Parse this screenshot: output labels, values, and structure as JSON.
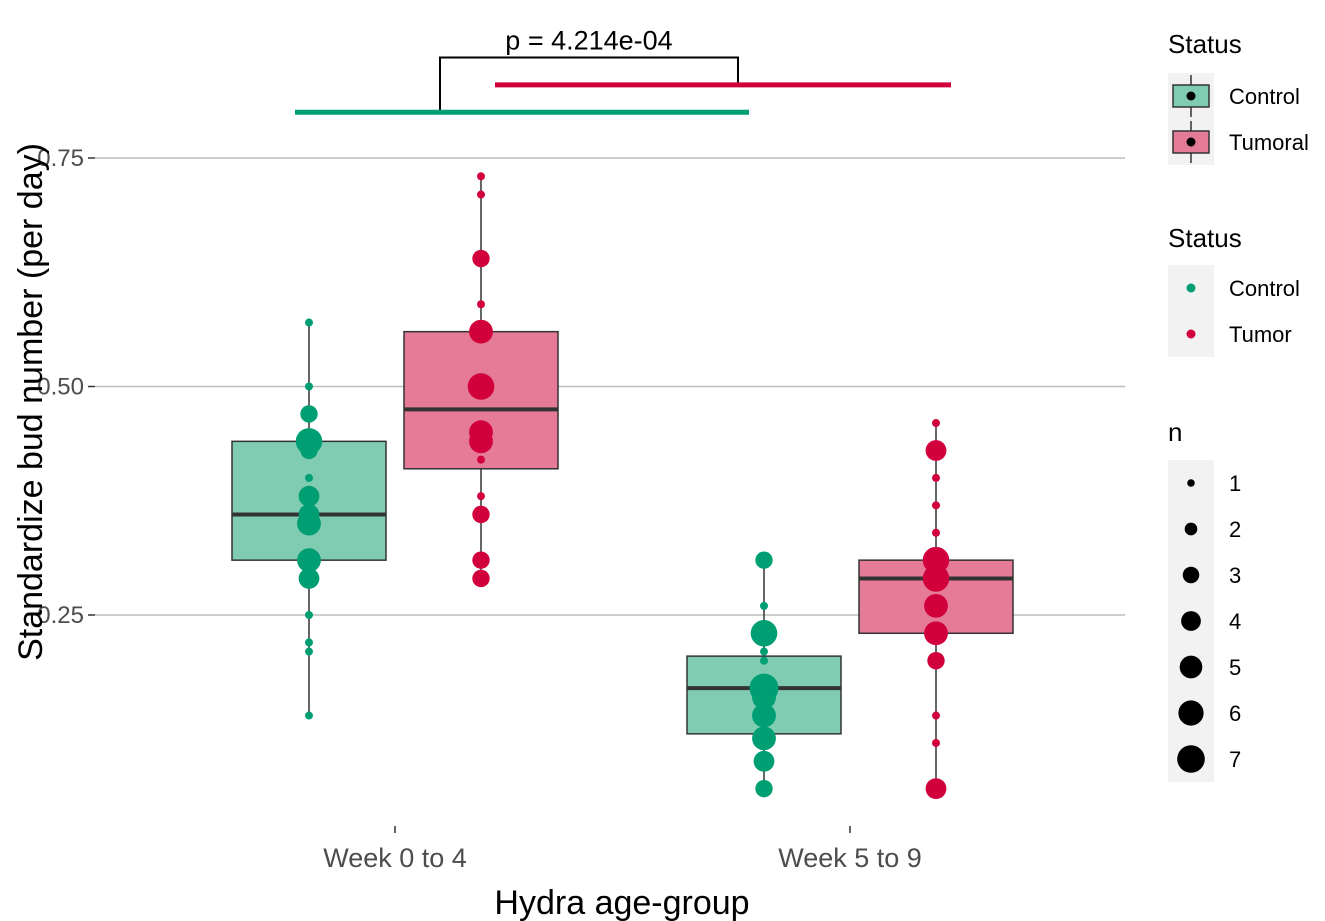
{
  "chart_data": {
    "type": "box",
    "title": "",
    "xlabel": "Hydra age-group",
    "ylabel": "Standardize bud number (per day)",
    "categories": [
      "Week 0 to 4",
      "Week 5 to 9"
    ],
    "ylim": [
      0.03,
      0.84
    ],
    "yticks": [
      0.25,
      0.5,
      0.75
    ],
    "ytick_labels": [
      "0.25",
      "0.50",
      "0.75"
    ],
    "grid": true,
    "colors": {
      "Control": "#009e73",
      "Tumoral": "#d1003c",
      "Control_fill": "#80ccb3",
      "Tumoral_fill": "#e57b96",
      "box_line": "#333333"
    },
    "boxes": [
      {
        "category": "Week 0 to 4",
        "status": "Control",
        "q1": 0.31,
        "median": 0.36,
        "q3": 0.44,
        "whisker_low": 0.14,
        "whisker_high": 0.57
      },
      {
        "category": "Week 0 to 4",
        "status": "Tumoral",
        "q1": 0.41,
        "median": 0.475,
        "q3": 0.56,
        "whisker_low": 0.29,
        "whisker_high": 0.73
      },
      {
        "category": "Week 5 to 9",
        "status": "Control",
        "q1": 0.12,
        "median": 0.17,
        "q3": 0.205,
        "whisker_low": 0.06,
        "whisker_high": 0.31
      },
      {
        "category": "Week 5 to 9",
        "status": "Tumoral",
        "q1": 0.23,
        "median": 0.29,
        "q3": 0.31,
        "whisker_low": 0.06,
        "whisker_high": 0.46
      }
    ],
    "points": [
      {
        "category": "Week 0 to 4",
        "status": "Control",
        "y": 0.57,
        "n": 1
      },
      {
        "category": "Week 0 to 4",
        "status": "Control",
        "y": 0.5,
        "n": 1
      },
      {
        "category": "Week 0 to 4",
        "status": "Control",
        "y": 0.47,
        "n": 3
      },
      {
        "category": "Week 0 to 4",
        "status": "Control",
        "y": 0.44,
        "n": 6
      },
      {
        "category": "Week 0 to 4",
        "status": "Control",
        "y": 0.43,
        "n": 3
      },
      {
        "category": "Week 0 to 4",
        "status": "Control",
        "y": 0.4,
        "n": 1
      },
      {
        "category": "Week 0 to 4",
        "status": "Control",
        "y": 0.38,
        "n": 4
      },
      {
        "category": "Week 0 to 4",
        "status": "Control",
        "y": 0.36,
        "n": 4
      },
      {
        "category": "Week 0 to 4",
        "status": "Control",
        "y": 0.35,
        "n": 5
      },
      {
        "category": "Week 0 to 4",
        "status": "Control",
        "y": 0.31,
        "n": 5
      },
      {
        "category": "Week 0 to 4",
        "status": "Control",
        "y": 0.29,
        "n": 4
      },
      {
        "category": "Week 0 to 4",
        "status": "Control",
        "y": 0.25,
        "n": 1
      },
      {
        "category": "Week 0 to 4",
        "status": "Control",
        "y": 0.22,
        "n": 1
      },
      {
        "category": "Week 0 to 4",
        "status": "Control",
        "y": 0.21,
        "n": 1
      },
      {
        "category": "Week 0 to 4",
        "status": "Control",
        "y": 0.14,
        "n": 1
      },
      {
        "category": "Week 0 to 4",
        "status": "Tumoral",
        "y": 0.73,
        "n": 1
      },
      {
        "category": "Week 0 to 4",
        "status": "Tumoral",
        "y": 0.71,
        "n": 1
      },
      {
        "category": "Week 0 to 4",
        "status": "Tumoral",
        "y": 0.64,
        "n": 3
      },
      {
        "category": "Week 0 to 4",
        "status": "Tumoral",
        "y": 0.59,
        "n": 1
      },
      {
        "category": "Week 0 to 4",
        "status": "Tumoral",
        "y": 0.56,
        "n": 5
      },
      {
        "category": "Week 0 to 4",
        "status": "Tumoral",
        "y": 0.5,
        "n": 6
      },
      {
        "category": "Week 0 to 4",
        "status": "Tumoral",
        "y": 0.45,
        "n": 5
      },
      {
        "category": "Week 0 to 4",
        "status": "Tumoral",
        "y": 0.44,
        "n": 5
      },
      {
        "category": "Week 0 to 4",
        "status": "Tumoral",
        "y": 0.42,
        "n": 1
      },
      {
        "category": "Week 0 to 4",
        "status": "Tumoral",
        "y": 0.38,
        "n": 1
      },
      {
        "category": "Week 0 to 4",
        "status": "Tumoral",
        "y": 0.36,
        "n": 3
      },
      {
        "category": "Week 0 to 4",
        "status": "Tumoral",
        "y": 0.31,
        "n": 3
      },
      {
        "category": "Week 0 to 4",
        "status": "Tumoral",
        "y": 0.29,
        "n": 3
      },
      {
        "category": "Week 5 to 9",
        "status": "Control",
        "y": 0.31,
        "n": 3
      },
      {
        "category": "Week 5 to 9",
        "status": "Control",
        "y": 0.26,
        "n": 1
      },
      {
        "category": "Week 5 to 9",
        "status": "Control",
        "y": 0.23,
        "n": 6
      },
      {
        "category": "Week 5 to 9",
        "status": "Control",
        "y": 0.21,
        "n": 1
      },
      {
        "category": "Week 5 to 9",
        "status": "Control",
        "y": 0.2,
        "n": 1
      },
      {
        "category": "Week 5 to 9",
        "status": "Control",
        "y": 0.17,
        "n": 7
      },
      {
        "category": "Week 5 to 9",
        "status": "Control",
        "y": 0.16,
        "n": 5
      },
      {
        "category": "Week 5 to 9",
        "status": "Control",
        "y": 0.14,
        "n": 5
      },
      {
        "category": "Week 5 to 9",
        "status": "Control",
        "y": 0.115,
        "n": 5
      },
      {
        "category": "Week 5 to 9",
        "status": "Control",
        "y": 0.09,
        "n": 4
      },
      {
        "category": "Week 5 to 9",
        "status": "Control",
        "y": 0.06,
        "n": 3
      },
      {
        "category": "Week 5 to 9",
        "status": "Tumoral",
        "y": 0.46,
        "n": 1
      },
      {
        "category": "Week 5 to 9",
        "status": "Tumoral",
        "y": 0.43,
        "n": 4
      },
      {
        "category": "Week 5 to 9",
        "status": "Tumoral",
        "y": 0.4,
        "n": 1
      },
      {
        "category": "Week 5 to 9",
        "status": "Tumoral",
        "y": 0.37,
        "n": 1
      },
      {
        "category": "Week 5 to 9",
        "status": "Tumoral",
        "y": 0.34,
        "n": 1
      },
      {
        "category": "Week 5 to 9",
        "status": "Tumoral",
        "y": 0.31,
        "n": 6
      },
      {
        "category": "Week 5 to 9",
        "status": "Tumoral",
        "y": 0.29,
        "n": 6
      },
      {
        "category": "Week 5 to 9",
        "status": "Tumoral",
        "y": 0.26,
        "n": 5
      },
      {
        "category": "Week 5 to 9",
        "status": "Tumoral",
        "y": 0.23,
        "n": 5
      },
      {
        "category": "Week 5 to 9",
        "status": "Tumoral",
        "y": 0.2,
        "n": 3
      },
      {
        "category": "Week 5 to 9",
        "status": "Tumoral",
        "y": 0.14,
        "n": 1
      },
      {
        "category": "Week 5 to 9",
        "status": "Tumoral",
        "y": 0.11,
        "n": 1
      },
      {
        "category": "Week 5 to 9",
        "status": "Tumoral",
        "y": 0.06,
        "n": 4
      }
    ],
    "significance": {
      "label": "p = 4.214e-04",
      "bars": [
        {
          "status": "Control",
          "y": 0.8,
          "x_from": "Week 0 to 4",
          "x_to": "Week 5 to 9"
        },
        {
          "status": "Tumoral",
          "y": 0.83,
          "x_from": "Week 0 to 4",
          "x_to": "Week 5 to 9"
        }
      ],
      "bracket_top_y": 0.86
    },
    "legends": [
      {
        "title": "Status",
        "kind": "box",
        "entries": [
          "Control",
          "Tumoral"
        ]
      },
      {
        "title": "Status",
        "kind": "point",
        "entries": [
          "Control",
          "Tumor"
        ]
      },
      {
        "title": "n",
        "kind": "size",
        "entries": [
          "1",
          "2",
          "3",
          "4",
          "5",
          "6",
          "7"
        ]
      }
    ]
  }
}
